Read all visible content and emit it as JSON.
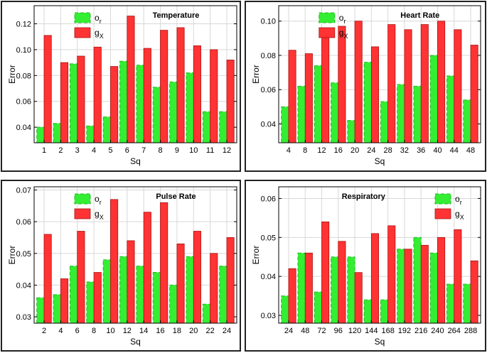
{
  "colors": {
    "o_r": "#33ee33",
    "g_x": "#ff3333",
    "grid": "#d8d8d8"
  },
  "legend": {
    "o_r": "o",
    "o_r_sub": "r",
    "g_x": "g",
    "g_x_sub": "X"
  },
  "chart_data": [
    {
      "type": "bar",
      "title": "Temperature",
      "xlabel": "Sq",
      "ylabel": "Error",
      "ylim": [
        0.028,
        0.134
      ],
      "yticks": [
        "0.04",
        "0.06",
        "0.08",
        "0.10",
        "0.12"
      ],
      "categories": [
        "1",
        "2",
        "3",
        "4",
        "5",
        "6",
        "7",
        "8",
        "9",
        "10",
        "11",
        "12"
      ],
      "series": [
        {
          "name": "o_r",
          "values": [
            0.04,
            0.043,
            0.089,
            0.041,
            0.048,
            0.091,
            0.088,
            0.071,
            0.075,
            0.082,
            0.052,
            0.052
          ]
        },
        {
          "name": "g_x",
          "values": [
            0.111,
            0.09,
            0.095,
            0.102,
            0.087,
            0.126,
            0.101,
            0.115,
            0.117,
            0.103,
            0.1,
            0.092
          ]
        }
      ],
      "legend_position": "top-left"
    },
    {
      "type": "bar",
      "title": "Heart Rate",
      "xlabel": "Sq",
      "ylabel": "Error",
      "ylim": [
        0.029,
        0.109
      ],
      "yticks": [
        "0.04",
        "0.06",
        "0.08",
        "0.10"
      ],
      "categories": [
        "4",
        "8",
        "12",
        "16",
        "20",
        "24",
        "28",
        "32",
        "36",
        "40",
        "44",
        "48"
      ],
      "series": [
        {
          "name": "o_r",
          "values": [
            0.05,
            0.062,
            0.074,
            0.064,
            0.042,
            0.076,
            0.053,
            0.063,
            0.062,
            0.08,
            0.068,
            0.054
          ]
        },
        {
          "name": "g_x",
          "values": [
            0.083,
            0.081,
            0.091,
            0.097,
            0.1,
            0.085,
            0.098,
            0.095,
            0.098,
            0.1,
            0.095,
            0.086
          ]
        }
      ],
      "legend_position": "top-left"
    },
    {
      "type": "bar",
      "title": "Pulse Rate",
      "xlabel": "Sq",
      "ylabel": "Error",
      "ylim": [
        0.028,
        0.071
      ],
      "yticks": [
        "0.03",
        "0.04",
        "0.05",
        "0.06",
        "0.07"
      ],
      "categories": [
        "2",
        "4",
        "6",
        "8",
        "10",
        "12",
        "14",
        "16",
        "18",
        "20",
        "22",
        "24"
      ],
      "series": [
        {
          "name": "o_r",
          "values": [
            0.036,
            0.037,
            0.046,
            0.041,
            0.048,
            0.049,
            0.046,
            0.044,
            0.04,
            0.049,
            0.034,
            0.046
          ]
        },
        {
          "name": "g_x",
          "values": [
            0.056,
            0.042,
            0.057,
            0.044,
            0.067,
            0.054,
            0.063,
            0.066,
            0.053,
            0.057,
            0.05,
            0.055
          ]
        }
      ],
      "legend_position": "top-left"
    },
    {
      "type": "bar",
      "title": "Respiratory",
      "xlabel": "Sq",
      "ylabel": "Error",
      "ylim": [
        0.028,
        0.063
      ],
      "yticks": [
        "0.03",
        "0.04",
        "0.05",
        "0.06"
      ],
      "categories": [
        "24",
        "48",
        "72",
        "96",
        "120",
        "144",
        "168",
        "192",
        "216",
        "240",
        "264",
        "288"
      ],
      "series": [
        {
          "name": "o_r",
          "values": [
            0.035,
            0.046,
            0.036,
            0.045,
            0.045,
            0.034,
            0.034,
            0.047,
            0.05,
            0.046,
            0.038,
            0.038
          ]
        },
        {
          "name": "g_x",
          "values": [
            0.042,
            0.046,
            0.054,
            0.049,
            0.041,
            0.051,
            0.053,
            0.047,
            0.048,
            0.05,
            0.052,
            0.044
          ]
        }
      ],
      "legend_position": "top-right"
    }
  ]
}
